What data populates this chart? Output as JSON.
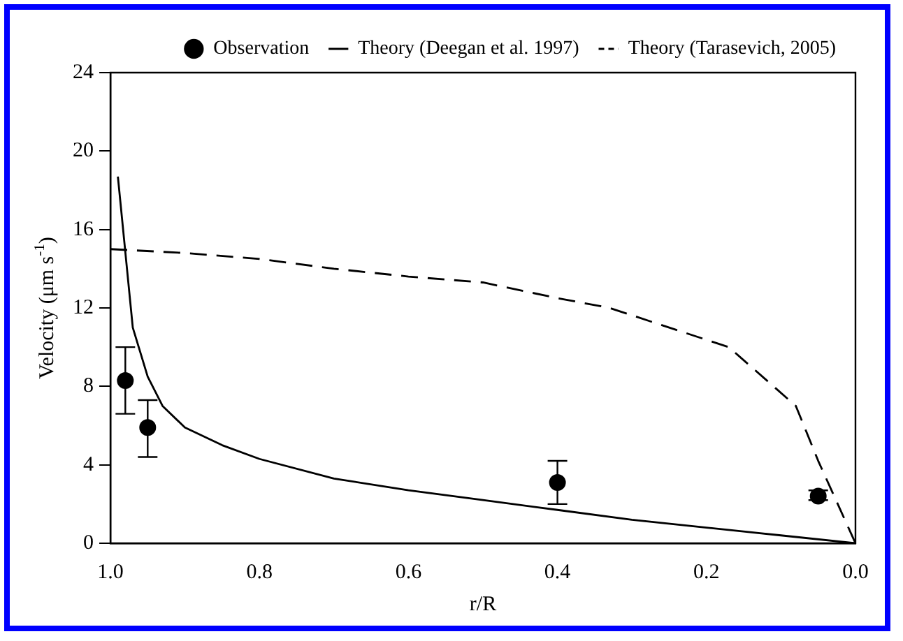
{
  "chart_data": {
    "type": "line",
    "xlabel": "r/R",
    "ylabel": "Velocity (μm s$^{-1}$)",
    "xlim": [
      1.0,
      0.0
    ],
    "xticks": [
      {
        "value": 1.0,
        "label": "1.0"
      },
      {
        "value": 0.8,
        "label": "0.8"
      },
      {
        "value": 0.6,
        "label": "0.6"
      },
      {
        "value": 0.4,
        "label": "0.4"
      },
      {
        "value": 0.2,
        "label": "0.2"
      },
      {
        "value": 0.0,
        "label": "0.0"
      }
    ],
    "ylim": [
      0,
      24
    ],
    "yticks": [
      0,
      4,
      8,
      12,
      16,
      20,
      24
    ],
    "grid": false,
    "legend": "top right",
    "series": [
      {
        "name": "Observation",
        "type": "scatter",
        "marker": "circle",
        "color": "#000000",
        "x": [
          0.98,
          0.95,
          0.4,
          0.05
        ],
        "values": [
          8.3,
          5.9,
          3.1,
          2.4
        ],
        "errors": [
          [
            6.6,
            10.0
          ],
          [
            4.4,
            7.3
          ],
          [
            2.0,
            4.2
          ],
          [
            2.2,
            2.7
          ]
        ]
      },
      {
        "name": "Theory (Deegan et al. 1997)",
        "type": "line",
        "line_style": "solid",
        "color": "#000000",
        "x": [
          0.99,
          0.97,
          0.95,
          0.93,
          0.9,
          0.85,
          0.8,
          0.7,
          0.6,
          0.5,
          0.4,
          0.3,
          0.2,
          0.1,
          0.0
        ],
        "values": [
          18.7,
          11.0,
          8.5,
          7.0,
          5.9,
          5.0,
          4.3,
          3.3,
          2.7,
          2.2,
          1.7,
          1.2,
          0.8,
          0.4,
          0
        ]
      },
      {
        "name": "Theory (Tarasevich, 2005)",
        "type": "line",
        "line_style": "dashed",
        "color": "#000000",
        "x": [
          1.0,
          0.9,
          0.8,
          0.7,
          0.6,
          0.5,
          0.4,
          0.33,
          0.25,
          0.17,
          0.08,
          0.05,
          0.0
        ],
        "values": [
          15.0,
          14.8,
          14.5,
          14.0,
          13.6,
          13.3,
          12.5,
          12.0,
          11.0,
          10.0,
          7.0,
          4.2,
          0
        ]
      }
    ]
  }
}
